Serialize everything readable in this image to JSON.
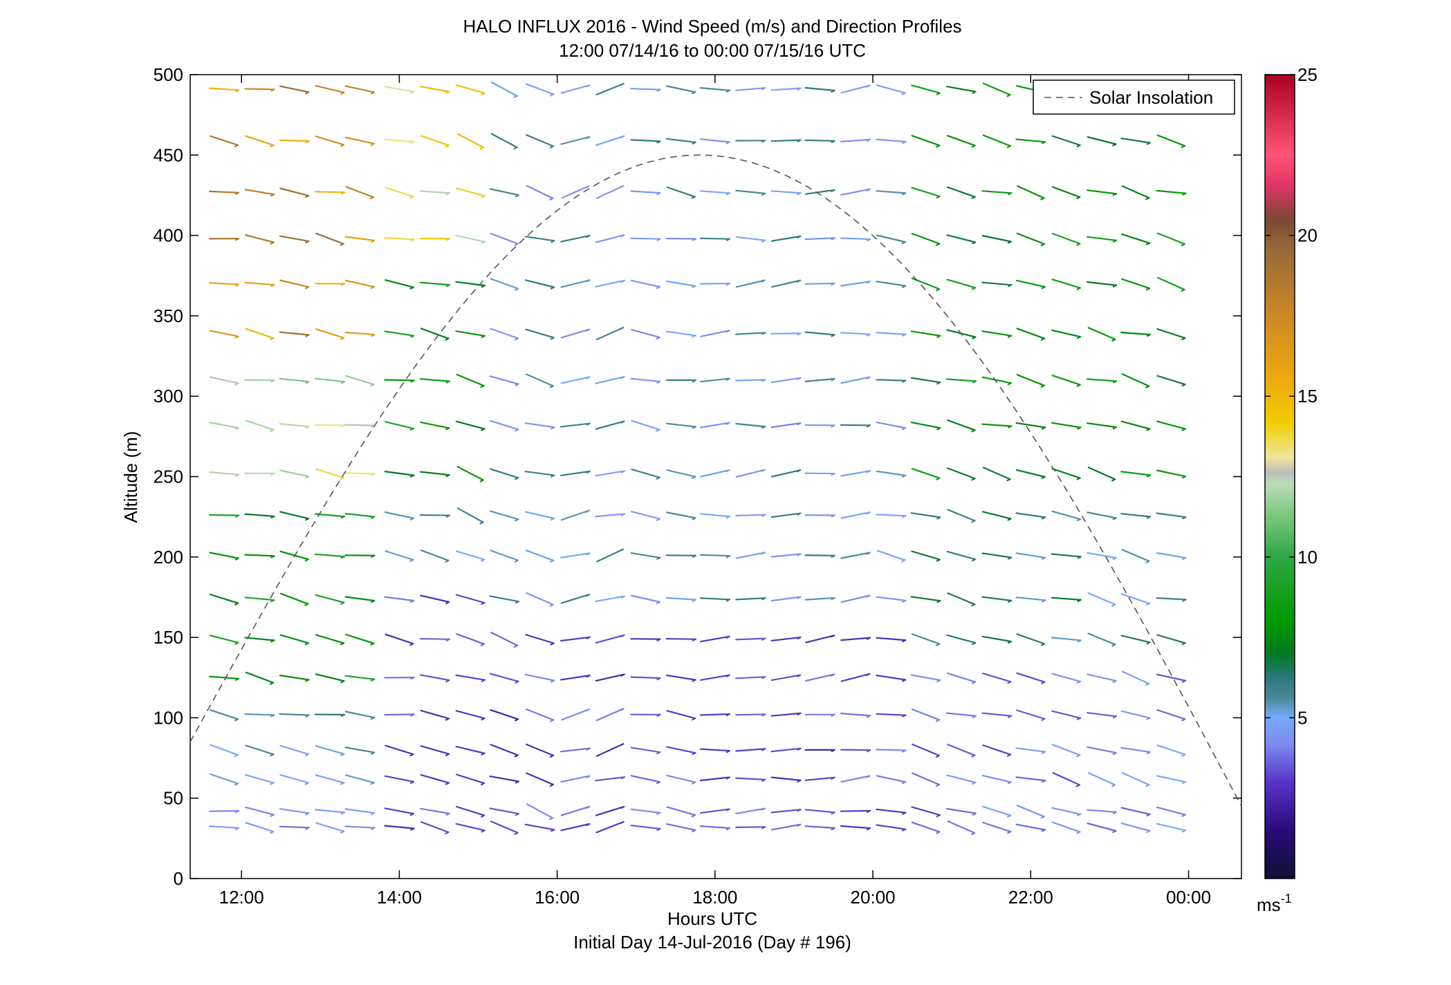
{
  "chart_data": {
    "type": "wind-barb-profile",
    "title": "HALO INFLUX 2016 - Wind Speed (m/s) and Direction Profiles",
    "subtitle": "12:00 07/14/16 to 00:00 07/15/16  UTC",
    "xlabel": "Hours UTC",
    "xlabel2": "Initial Day 14-Jul-2016 (Day # 196)",
    "ylabel": "Altitude (m)",
    "xlim_hours": [
      11.35,
      24.67
    ],
    "ylim": [
      0,
      500
    ],
    "x_ticks": [
      {
        "hour": 12,
        "label": "12:00"
      },
      {
        "hour": 14,
        "label": "14:00"
      },
      {
        "hour": 16,
        "label": "16:00"
      },
      {
        "hour": 18,
        "label": "18:00"
      },
      {
        "hour": 20,
        "label": "20:00"
      },
      {
        "hour": 22,
        "label": "22:00"
      },
      {
        "hour": 24,
        "label": "00:00"
      }
    ],
    "y_ticks": [
      0,
      50,
      100,
      150,
      200,
      250,
      300,
      350,
      400,
      450,
      500
    ],
    "legend": {
      "label": "Solar Insolation",
      "style": "dashed",
      "color": "#666666",
      "placement": "top-right"
    },
    "colorbar": {
      "min": 0,
      "max": 25,
      "ticks": [
        5,
        10,
        15,
        20,
        25
      ],
      "unit_label": "ms",
      "unit_exp": "-1",
      "stops": [
        {
          "v": 0,
          "c": "#0c1233"
        },
        {
          "v": 1.5,
          "c": "#2a0a7a"
        },
        {
          "v": 3,
          "c": "#5a33cc"
        },
        {
          "v": 4.2,
          "c": "#7c8cf0"
        },
        {
          "v": 5,
          "c": "#77aaff"
        },
        {
          "v": 5.6,
          "c": "#4a8a99"
        },
        {
          "v": 6.3,
          "c": "#2a7777"
        },
        {
          "v": 7,
          "c": "#007a1f"
        },
        {
          "v": 8,
          "c": "#009900"
        },
        {
          "v": 10,
          "c": "#2ea845"
        },
        {
          "v": 11.5,
          "c": "#88cc88"
        },
        {
          "v": 12.3,
          "c": "#bbddbb"
        },
        {
          "v": 12.6,
          "c": "#bbbbbb"
        },
        {
          "v": 13.1,
          "c": "#eee699"
        },
        {
          "v": 14.2,
          "c": "#f0cc00"
        },
        {
          "v": 15.5,
          "c": "#eeaa10"
        },
        {
          "v": 17.5,
          "c": "#cc8822"
        },
        {
          "v": 19.5,
          "c": "#9a6a3a"
        },
        {
          "v": 20.5,
          "c": "#7a4a33"
        },
        {
          "v": 21.5,
          "c": "#dd3366"
        },
        {
          "v": 22.5,
          "c": "#ff5577"
        },
        {
          "v": 25,
          "c": "#aa0022"
        }
      ]
    },
    "solar_insolation": {
      "peak_hour": 17.8,
      "peak_alt_m": 450,
      "zero_crossing_hours": [
        11.35,
        24.67
      ],
      "end_alt_m": [
        85,
        45
      ]
    },
    "wind_times_hours": [
      11.78,
      12.23,
      12.67,
      13.12,
      13.5,
      14.0,
      14.45,
      14.9,
      15.33,
      15.78,
      16.23,
      16.67,
      17.12,
      17.57,
      18.0,
      18.45,
      18.9,
      19.33,
      19.78,
      20.23,
      20.67,
      21.12,
      21.57,
      22.0,
      22.45,
      22.9,
      23.33,
      23.78
    ],
    "wind_altitudes_m": [
      32,
      42,
      62,
      80,
      102,
      125,
      149,
      174,
      201,
      226,
      252,
      282,
      310,
      339,
      370,
      398,
      427,
      459,
      491
    ],
    "wind_speed_regimes": {
      "early_morning_high_levels": "15-20 m/s (yellow to brown)",
      "low_levels_after_14h": "2-5 m/s (purple to light blue)",
      "evening_upper_levels": "6-9 m/s (green)"
    }
  }
}
